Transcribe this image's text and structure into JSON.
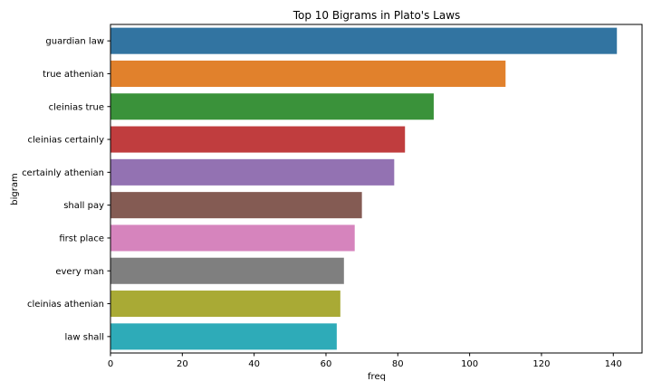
{
  "chart_data": {
    "type": "bar",
    "orientation": "horizontal",
    "title": "Top 10 Bigrams in Plato's Laws",
    "xlabel": "freq",
    "ylabel": "bigram",
    "xlim": [
      0,
      148
    ],
    "xticks": [
      0,
      20,
      40,
      60,
      80,
      100,
      120,
      140
    ],
    "grid": false,
    "categories": [
      "guardian law",
      "true athenian",
      "cleinias true",
      "cleinias certainly",
      "certainly athenian",
      "shall pay",
      "first place",
      "every man",
      "cleinias athenian",
      "law shall"
    ],
    "values": [
      141,
      110,
      90,
      82,
      79,
      70,
      68,
      65,
      64,
      63
    ],
    "colors": [
      "#3274a1",
      "#e1812c",
      "#3a923a",
      "#c03d3e",
      "#9372b2",
      "#845b53",
      "#d684bd",
      "#7f7f7f",
      "#a9aa35",
      "#2eabb8"
    ]
  }
}
